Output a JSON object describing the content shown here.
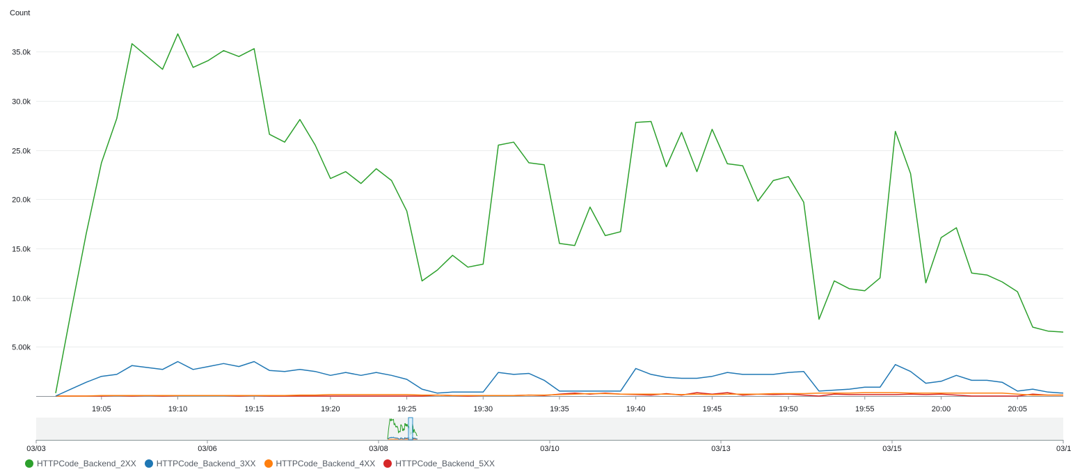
{
  "chart_data": {
    "type": "line",
    "ylabel": "Count",
    "ylim": [
      0,
      36000
    ],
    "yticks": [
      "5.00k",
      "10.0k",
      "15.0k",
      "20.0k",
      "25.0k",
      "30.0k",
      "35.0k"
    ],
    "ytick_values": [
      5000,
      10000,
      15000,
      20000,
      25000,
      30000,
      35000
    ],
    "x_start": "19:02",
    "x_end": "20:08",
    "xticks": [
      "19:05",
      "19:10",
      "19:15",
      "19:20",
      "19:25",
      "19:30",
      "19:35",
      "19:40",
      "19:45",
      "19:50",
      "19:55",
      "20:00",
      "20:05"
    ],
    "x": [
      "19:02",
      "19:03",
      "19:04",
      "19:05",
      "19:06",
      "19:07",
      "19:08",
      "19:09",
      "19:10",
      "19:11",
      "19:12",
      "19:13",
      "19:14",
      "19:15",
      "19:16",
      "19:17",
      "19:18",
      "19:19",
      "19:20",
      "19:21",
      "19:22",
      "19:23",
      "19:24",
      "19:25",
      "19:26",
      "19:27",
      "19:28",
      "19:29",
      "19:30",
      "19:31",
      "19:32",
      "19:33",
      "19:34",
      "19:35",
      "19:36",
      "19:37",
      "19:38",
      "19:39",
      "19:40",
      "19:41",
      "19:42",
      "19:43",
      "19:44",
      "19:45",
      "19:46",
      "19:47",
      "19:48",
      "19:49",
      "19:50",
      "19:51",
      "19:52",
      "19:53",
      "19:54",
      "19:55",
      "19:56",
      "19:57",
      "19:58",
      "19:59",
      "20:00",
      "20:01",
      "20:02",
      "20:03",
      "20:04",
      "20:05",
      "20:06",
      "20:07",
      "20:08"
    ],
    "grid": true,
    "legend_position": "bottom-left",
    "series": [
      {
        "name": "HTTPCode_Backend_2XX",
        "color": "#2ca02c",
        "values": [
          300,
          8500,
          16500,
          23700,
          28200,
          35800,
          34500,
          33200,
          36800,
          33400,
          34100,
          35100,
          34500,
          35300,
          26600,
          25800,
          28100,
          25500,
          22100,
          22800,
          21600,
          23100,
          21900,
          18800,
          11700,
          12800,
          14300,
          13100,
          13400,
          25500,
          25800,
          23700,
          23500,
          15500,
          15300,
          19200,
          16300,
          16700,
          27800,
          27900,
          23300,
          26800,
          22800,
          27100,
          23600,
          23400,
          19800,
          21900,
          22300,
          19700,
          7800,
          11700,
          10900,
          10700,
          12000,
          26900,
          22600,
          11500,
          16100,
          17100,
          12500,
          12300,
          11600,
          10600,
          7000,
          6600,
          6500
        ]
      },
      {
        "name": "HTTPCode_Backend_3XX",
        "color": "#1f77b4",
        "values": [
          0,
          700,
          1400,
          2000,
          2200,
          3100,
          2900,
          2700,
          3500,
          2700,
          3000,
          3300,
          3000,
          3500,
          2600,
          2500,
          2700,
          2500,
          2100,
          2400,
          2100,
          2400,
          2100,
          1700,
          700,
          300,
          400,
          400,
          400,
          2400,
          2200,
          2300,
          1600,
          500,
          500,
          500,
          500,
          500,
          2800,
          2200,
          1900,
          1800,
          1800,
          2000,
          2400,
          2200,
          2200,
          2200,
          2400,
          2500,
          500,
          600,
          700,
          900,
          900,
          3200,
          2500,
          1300,
          1500,
          2100,
          1600,
          1600,
          1400,
          500,
          700,
          400,
          300
        ]
      },
      {
        "name": "HTTPCode_Backend_4XX",
        "color": "#ff7f0e",
        "values": [
          0,
          0,
          0,
          50,
          50,
          50,
          50,
          60,
          60,
          60,
          60,
          50,
          60,
          50,
          60,
          60,
          100,
          100,
          150,
          150,
          150,
          150,
          150,
          150,
          100,
          100,
          50,
          50,
          50,
          50,
          50,
          100,
          100,
          150,
          200,
          250,
          250,
          200,
          200,
          200,
          200,
          150,
          200,
          150,
          200,
          200,
          200,
          250,
          250,
          250,
          300,
          300,
          300,
          350,
          350,
          350,
          300,
          300,
          300,
          300,
          300,
          300,
          300,
          200,
          100,
          100,
          100
        ]
      },
      {
        "name": "HTTPCode_Backend_5XX",
        "color": "#d62728",
        "values": [
          0,
          0,
          0,
          0,
          50,
          0,
          50,
          0,
          50,
          50,
          50,
          50,
          0,
          50,
          0,
          0,
          0,
          0,
          0,
          0,
          0,
          0,
          0,
          0,
          0,
          100,
          50,
          0,
          50,
          50,
          50,
          100,
          50,
          200,
          300,
          200,
          300,
          200,
          150,
          100,
          250,
          100,
          350,
          200,
          350,
          100,
          200,
          150,
          200,
          100,
          0,
          200,
          150,
          150,
          150,
          150,
          200,
          150,
          200,
          100,
          0,
          0,
          0,
          0,
          200,
          100,
          100
        ]
      }
    ],
    "overview": {
      "ticks": [
        "03/03",
        "03/06",
        "03/08",
        "03/10",
        "03/13",
        "03/15",
        "03/1"
      ]
    }
  }
}
